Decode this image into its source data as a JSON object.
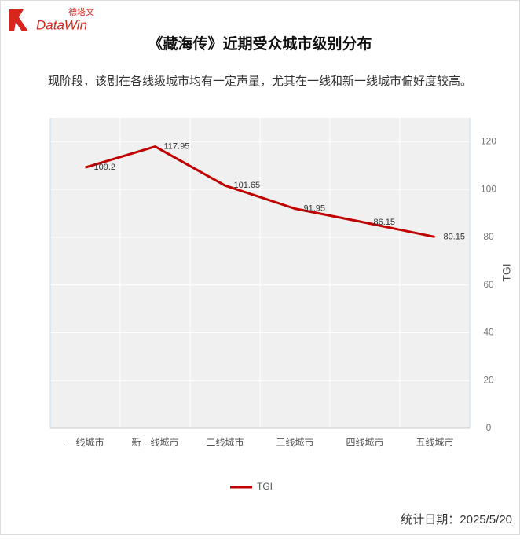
{
  "logo": {
    "chinese": "德塔文",
    "brand": "DataWin"
  },
  "footer": "统计日期：2025/5/20",
  "chart_data": {
    "type": "line",
    "title": "《藏海传》近期受众城市级别分布",
    "subtitle": "现阶段，该剧在各线级城市均有一定声量，尤其在一线和新一线城市偏好度较高。",
    "categories": [
      "一线城市",
      "新一线城市",
      "二线城市",
      "三线城市",
      "四线城市",
      "五线城市"
    ],
    "series": [
      {
        "name": "TGI",
        "color": "#c00000",
        "values": [
          109.2,
          117.95,
          101.65,
          91.95,
          86.15,
          80.15
        ]
      }
    ],
    "ylabel": "TGI",
    "ylim": [
      0,
      130
    ],
    "yticks": [
      0,
      20,
      40,
      60,
      80,
      100,
      120
    ],
    "y_axis_side": "right",
    "grid": true,
    "legend": "bottom"
  }
}
